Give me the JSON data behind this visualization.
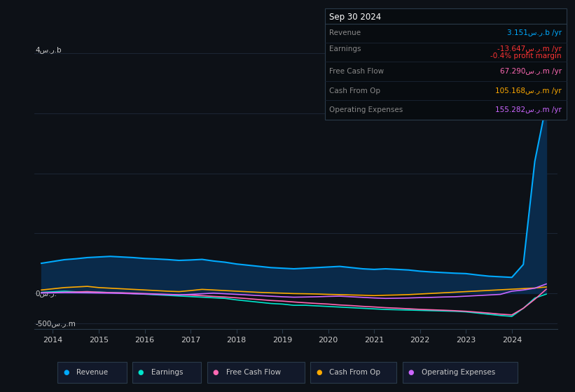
{
  "background_color": "#0d1117",
  "plot_bg_color": "#0d1117",
  "grid_color": "#1e2a3a",
  "text_color": "#cccccc",
  "title_box": {
    "date": "Sep 30 2024",
    "rows": [
      {
        "label": "Revenue",
        "value": "3.151س.ر.b /yr",
        "value_color": "#00aaff"
      },
      {
        "label": "Earnings",
        "value": "-13.647س.ر.m /yr",
        "value_color": "#ff3333"
      },
      {
        "label": "",
        "value": "-0.4% profit margin",
        "value_color": "#ff3333"
      },
      {
        "label": "Free Cash Flow",
        "value": "67.290س.ر.m /yr",
        "value_color": "#ff69b4"
      },
      {
        "label": "Cash From Op",
        "value": "105.168س.ر.m /yr",
        "value_color": "#ffaa00"
      },
      {
        "label": "Operating Expenses",
        "value": "155.282س.ر.m /yr",
        "value_color": "#cc66ff"
      }
    ]
  },
  "years": [
    2013.75,
    2014.0,
    2014.25,
    2014.5,
    2014.75,
    2015.0,
    2015.25,
    2015.5,
    2015.75,
    2016.0,
    2016.25,
    2016.5,
    2016.75,
    2017.0,
    2017.25,
    2017.5,
    2017.75,
    2018.0,
    2018.25,
    2018.5,
    2018.75,
    2019.0,
    2019.25,
    2019.5,
    2019.75,
    2020.0,
    2020.25,
    2020.5,
    2020.75,
    2021.0,
    2021.25,
    2021.5,
    2021.75,
    2022.0,
    2022.25,
    2022.5,
    2022.75,
    2023.0,
    2023.25,
    2023.5,
    2023.75,
    2024.0,
    2024.25,
    2024.5,
    2024.75
  ],
  "revenue": [
    500,
    530,
    560,
    575,
    595,
    605,
    615,
    605,
    595,
    580,
    572,
    562,
    548,
    555,
    565,
    538,
    518,
    488,
    468,
    448,
    428,
    418,
    408,
    418,
    428,
    438,
    448,
    428,
    408,
    398,
    408,
    398,
    388,
    368,
    355,
    345,
    335,
    328,
    305,
    285,
    275,
    265,
    480,
    2200,
    3151
  ],
  "earnings": [
    15,
    25,
    35,
    25,
    15,
    20,
    10,
    5,
    -5,
    -15,
    -25,
    -35,
    -45,
    -55,
    -65,
    -75,
    -85,
    -110,
    -130,
    -150,
    -170,
    -180,
    -200,
    -200,
    -210,
    -220,
    -230,
    -240,
    -250,
    -260,
    -270,
    -275,
    -280,
    -285,
    -290,
    -295,
    -300,
    -310,
    -330,
    -350,
    -370,
    -385,
    -250,
    -80,
    -13.647
  ],
  "free_cash_flow": [
    8,
    12,
    18,
    22,
    28,
    18,
    12,
    8,
    2,
    -5,
    -12,
    -18,
    -25,
    -30,
    -40,
    -52,
    -62,
    -75,
    -90,
    -105,
    -120,
    -130,
    -145,
    -158,
    -170,
    -180,
    -195,
    -205,
    -218,
    -228,
    -240,
    -248,
    -258,
    -268,
    -275,
    -282,
    -290,
    -300,
    -315,
    -330,
    -348,
    -360,
    -250,
    -100,
    67.29
  ],
  "cash_from_op": [
    55,
    75,
    95,
    105,
    115,
    95,
    85,
    75,
    65,
    55,
    45,
    35,
    28,
    45,
    65,
    55,
    45,
    35,
    25,
    15,
    8,
    2,
    -5,
    -8,
    -12,
    -18,
    -22,
    -28,
    -32,
    -38,
    -32,
    -28,
    -22,
    -12,
    -2,
    8,
    18,
    28,
    38,
    48,
    58,
    68,
    78,
    88,
    105.168
  ],
  "operating_expenses": [
    5,
    8,
    12,
    10,
    8,
    5,
    2,
    -2,
    -8,
    -12,
    -18,
    -22,
    -28,
    -18,
    -8,
    2,
    -8,
    -18,
    -28,
    -38,
    -48,
    -58,
    -65,
    -62,
    -58,
    -52,
    -48,
    -58,
    -68,
    -78,
    -85,
    -82,
    -78,
    -72,
    -68,
    -62,
    -58,
    -48,
    -38,
    -28,
    -18,
    35,
    55,
    85,
    155.282
  ],
  "revenue_color": "#00aaff",
  "earnings_color": "#00e5cc",
  "free_cash_flow_color": "#ff69b4",
  "cash_from_op_color": "#ffaa00",
  "operating_expenses_color": "#cc66ff",
  "revenue_fill_color": "#0a2a4a",
  "ylabel_top": "4س.ر.b",
  "ylabel_mid": "0س.ر.",
  "ylabel_bot": "-500س.ر.m",
  "xlim": [
    2013.6,
    2025.0
  ],
  "ylim": [
    -600,
    4300
  ],
  "xticks": [
    2014,
    2015,
    2016,
    2017,
    2018,
    2019,
    2020,
    2021,
    2022,
    2023,
    2024
  ],
  "grid_lines": [
    4000,
    3000,
    2000,
    1000,
    0,
    -500
  ],
  "legend_items": [
    {
      "label": "Revenue",
      "color": "#00aaff"
    },
    {
      "label": "Earnings",
      "color": "#00e5cc"
    },
    {
      "label": "Free Cash Flow",
      "color": "#ff69b4"
    },
    {
      "label": "Cash From Op",
      "color": "#ffaa00"
    },
    {
      "label": "Operating Expenses",
      "color": "#cc66ff"
    }
  ]
}
